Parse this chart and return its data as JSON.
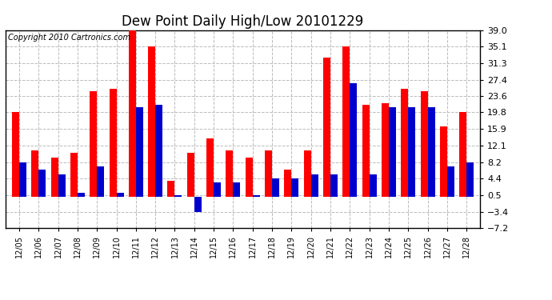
{
  "title": "Dew Point Daily High/Low 20101229",
  "copyright": "Copyright 2010 Cartronics.com",
  "dates": [
    "12/05",
    "12/06",
    "12/07",
    "12/08",
    "12/09",
    "12/10",
    "12/11",
    "12/12",
    "12/13",
    "12/14",
    "12/15",
    "12/16",
    "12/17",
    "12/18",
    "12/19",
    "12/20",
    "12/21",
    "12/22",
    "12/23",
    "12/24",
    "12/25",
    "12/26",
    "12/27",
    "12/28"
  ],
  "highs": [
    19.8,
    10.9,
    9.3,
    10.4,
    24.8,
    25.3,
    39.0,
    35.1,
    3.8,
    10.4,
    13.7,
    10.9,
    9.3,
    10.9,
    6.5,
    10.9,
    32.5,
    35.1,
    21.5,
    22.0,
    25.3,
    24.8,
    16.5,
    19.8
  ],
  "lows": [
    8.2,
    6.5,
    5.4,
    1.0,
    7.1,
    1.0,
    21.0,
    21.5,
    0.5,
    -3.4,
    3.5,
    3.5,
    0.5,
    4.4,
    4.4,
    5.4,
    5.4,
    26.5,
    5.4,
    20.9,
    20.9,
    20.9,
    7.1,
    8.2
  ],
  "yticks": [
    39.0,
    35.1,
    31.3,
    27.4,
    23.6,
    19.8,
    15.9,
    12.1,
    8.2,
    4.4,
    0.5,
    -3.4,
    -7.2
  ],
  "ymin": -7.2,
  "ymax": 39.0,
  "bar_color_high": "#ff0000",
  "bar_color_low": "#0000cc",
  "bg_color": "#ffffff",
  "grid_color": "#bbbbbb",
  "title_fontsize": 12,
  "copyright_fontsize": 7
}
